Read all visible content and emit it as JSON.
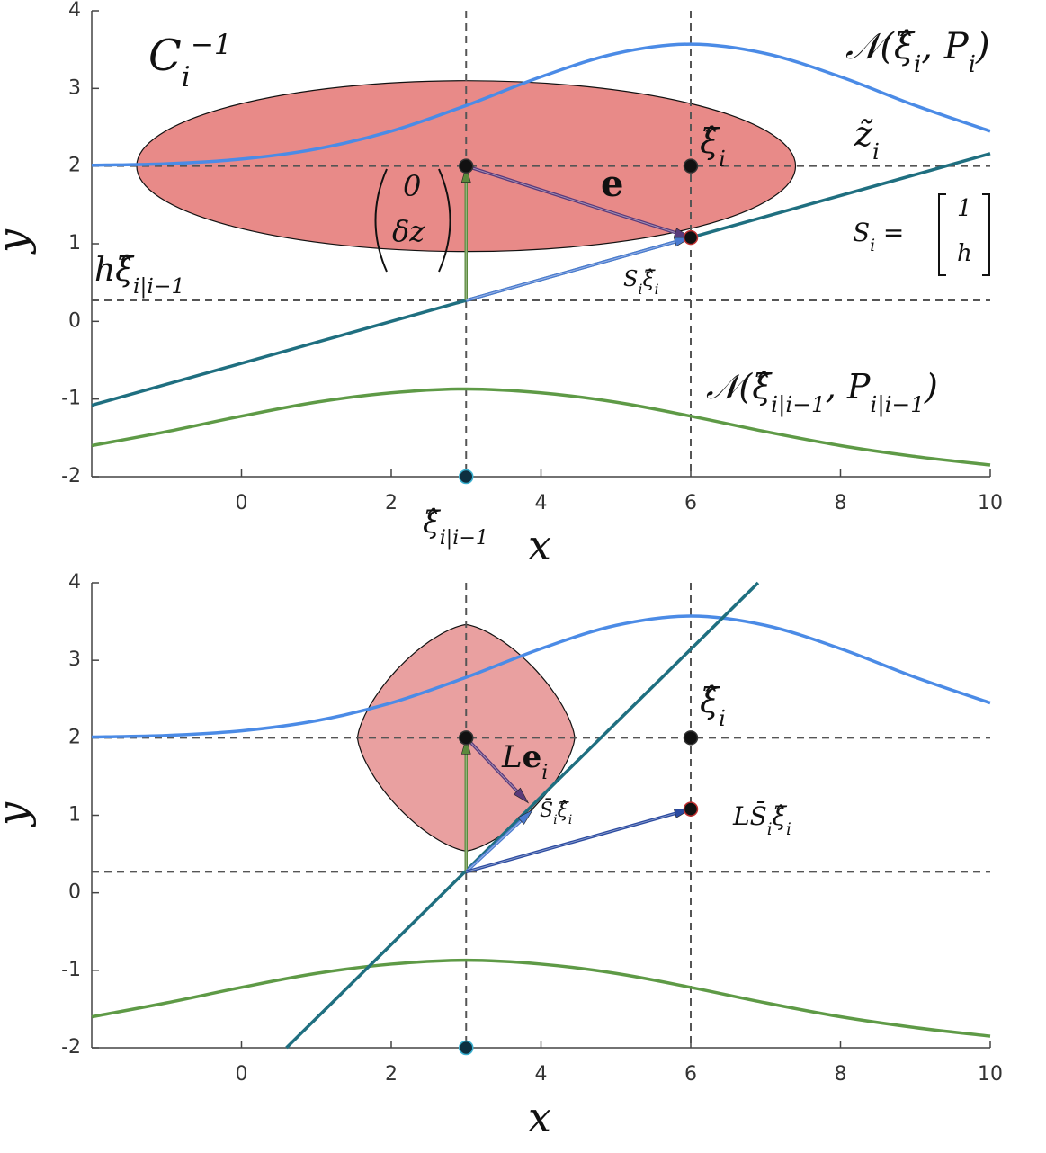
{
  "chart_data": [
    {
      "type": "line",
      "xlabel": "x",
      "ylabel": "y",
      "xlim": [
        -2,
        10
      ],
      "ylim": [
        -2,
        4
      ],
      "xticks": [
        0,
        2,
        4,
        6,
        8,
        10
      ],
      "yticks": [
        -2,
        -1,
        0,
        1,
        2,
        3,
        4
      ],
      "series": [
        {
          "color": "#4b8be6",
          "x": [
            -2,
            -1,
            0,
            1,
            2,
            3,
            4,
            5,
            6,
            7,
            8,
            9,
            10
          ],
          "values": [
            2.01,
            2.03,
            2.09,
            2.22,
            2.45,
            2.78,
            3.15,
            3.45,
            3.57,
            3.45,
            3.15,
            2.78,
            2.45
          ]
        },
        {
          "color": "#5e9a46",
          "x": [
            -2,
            -1,
            0,
            1,
            2,
            3,
            4,
            5,
            6,
            7,
            8,
            9,
            10
          ],
          "values": [
            -1.6,
            -1.42,
            -1.22,
            -1.04,
            -0.92,
            -0.87,
            -0.92,
            -1.04,
            -1.22,
            -1.42,
            -1.6,
            -1.74,
            -1.85
          ]
        },
        {
          "color": "#1f6f80",
          "x": [
            -2,
            10
          ],
          "values": [
            -1.08,
            2.16
          ]
        }
      ],
      "hlines": [
        2,
        0.27
      ],
      "vlines": [
        3,
        6
      ],
      "region": {
        "shape": "ellipse",
        "cx": 3,
        "cy": 2,
        "rx": 4.4,
        "ry": 1.1,
        "color": "#e88a88"
      },
      "points": {
        "x": [
          3,
          6,
          6,
          3
        ],
        "y": [
          2,
          2,
          1.08,
          -2
        ],
        "fill": [
          "#111111",
          "#111111",
          "#111111",
          "#0d2f40"
        ],
        "edge": [
          "#333333",
          "#333333",
          "#c03030",
          "#3ab0d0"
        ]
      },
      "arrows": [
        {
          "x": [
            3,
            3
          ],
          "y": [
            0.27,
            2
          ],
          "color": "#5b8a3c"
        },
        {
          "x": [
            3,
            6
          ],
          "y": [
            2,
            1.08
          ],
          "color": "#5a3a7a"
        },
        {
          "x": [
            3,
            6
          ],
          "y": [
            0.27,
            1.08
          ],
          "color": "#4a7ad0"
        }
      ],
      "annotations": [
        {
          "runs": [
            {
              "text": "C"
            },
            {
              "text": "i",
              "pos": "sub"
            },
            {
              "text": "−1",
              "pos": "sup"
            }
          ]
        },
        {
          "runs": [
            {
              "text": "𝒩(ξ̂"
            },
            {
              "text": "i",
              "pos": "sub"
            },
            {
              "text": ", P"
            },
            {
              "text": "i",
              "pos": "sub"
            },
            {
              "text": ")"
            }
          ]
        },
        {
          "runs": [
            {
              "text": "ξ̂"
            },
            {
              "text": "i",
              "pos": "sub"
            }
          ]
        },
        {
          "runs": [
            {
              "text": "z̃"
            },
            {
              "text": "i",
              "pos": "sub"
            }
          ]
        },
        {
          "runs": [
            {
              "text": "e",
              "weight": "bold"
            }
          ]
        },
        {
          "runs": [
            {
              "text": "0"
            }
          ]
        },
        {
          "runs": [
            {
              "text": "δz"
            }
          ]
        },
        {
          "runs": [
            {
              "text": "S"
            },
            {
              "text": "i",
              "pos": "sub"
            },
            {
              "text": " ="
            }
          ]
        },
        {
          "runs": [
            {
              "text": "1"
            }
          ]
        },
        {
          "runs": [
            {
              "text": "h"
            }
          ]
        },
        {
          "runs": [
            {
              "text": "hξ̂"
            },
            {
              "text": "i|i−1",
              "pos": "sub"
            }
          ]
        },
        {
          "runs": [
            {
              "text": "S"
            },
            {
              "text": "i",
              "pos": "sub"
            },
            {
              "text": "ξ̂"
            },
            {
              "text": "i",
              "pos": "sub"
            }
          ]
        },
        {
          "runs": [
            {
              "text": "𝒩(ξ̂"
            },
            {
              "text": "i|i−1",
              "pos": "sub"
            },
            {
              "text": ", P"
            },
            {
              "text": "i|i−1",
              "pos": "sub"
            },
            {
              "text": ")"
            }
          ]
        },
        {
          "runs": [
            {
              "text": "ξ̂"
            },
            {
              "text": "i|i−1",
              "pos": "sub"
            }
          ]
        }
      ]
    },
    {
      "type": "line",
      "xlabel": "x",
      "ylabel": "y",
      "xlim": [
        -2,
        10
      ],
      "ylim": [
        -2,
        4
      ],
      "xticks": [
        0,
        2,
        4,
        6,
        8,
        10
      ],
      "yticks": [
        -2,
        -1,
        0,
        1,
        2,
        3,
        4
      ],
      "series": [
        {
          "color": "#4b8be6",
          "x": [
            -2,
            -1,
            0,
            1,
            2,
            3,
            4,
            5,
            6,
            7,
            8,
            9,
            10
          ],
          "values": [
            2.01,
            2.03,
            2.09,
            2.22,
            2.45,
            2.78,
            3.15,
            3.45,
            3.57,
            3.45,
            3.15,
            2.78,
            2.45
          ]
        },
        {
          "color": "#5e9a46",
          "x": [
            -2,
            -1,
            0,
            1,
            2,
            3,
            4,
            5,
            6,
            7,
            8,
            9,
            10
          ],
          "values": [
            -1.6,
            -1.42,
            -1.22,
            -1.04,
            -0.92,
            -0.87,
            -0.92,
            -1.04,
            -1.22,
            -1.42,
            -1.6,
            -1.74,
            -1.85
          ]
        },
        {
          "color": "#1f6f80",
          "x": [
            0.6,
            6.9
          ],
          "values": [
            -2,
            4
          ]
        }
      ],
      "hlines": [
        2,
        0.27
      ],
      "vlines": [
        3,
        6
      ],
      "region": {
        "shape": "superellipse",
        "cx": 3,
        "cy": 2,
        "rx": 1.45,
        "ry": 1.46,
        "color": "#e9a0a0"
      },
      "points": {
        "x": [
          3,
          6,
          6,
          3
        ],
        "y": [
          2,
          2,
          1.08,
          -2
        ],
        "fill": [
          "#111111",
          "#111111",
          "#111111",
          "#0d2f40"
        ],
        "edge": [
          "#333333",
          "#333333",
          "#c03030",
          "#3ab0d0"
        ]
      },
      "arrows": [
        {
          "x": [
            3,
            3
          ],
          "y": [
            0.27,
            2
          ],
          "color": "#5b8a3c"
        },
        {
          "x": [
            3,
            3.83
          ],
          "y": [
            2,
            1.16
          ],
          "color": "#5a3a7a"
        },
        {
          "x": [
            3,
            3.89
          ],
          "y": [
            0.27,
            1.07
          ],
          "color": "#4a7ad0"
        },
        {
          "x": [
            3,
            6
          ],
          "y": [
            0.27,
            1.08
          ],
          "color": "#2a4aa0"
        }
      ],
      "annotations": [
        {
          "runs": [
            {
              "text": "ξ̂"
            },
            {
              "text": "i",
              "pos": "sub"
            }
          ]
        },
        {
          "runs": [
            {
              "text": "L"
            },
            {
              "text": "e",
              "weight": "bold"
            },
            {
              "text": "i",
              "pos": "sub"
            }
          ]
        },
        {
          "runs": [
            {
              "text": "S̄"
            },
            {
              "text": "i",
              "pos": "sub"
            },
            {
              "text": "ξ̂"
            },
            {
              "text": "i",
              "pos": "sub"
            }
          ]
        },
        {
          "runs": [
            {
              "text": "LS̄"
            },
            {
              "text": "i",
              "pos": "sub"
            },
            {
              "text": "ξ̂"
            },
            {
              "text": "i",
              "pos": "sub"
            }
          ]
        }
      ]
    }
  ]
}
